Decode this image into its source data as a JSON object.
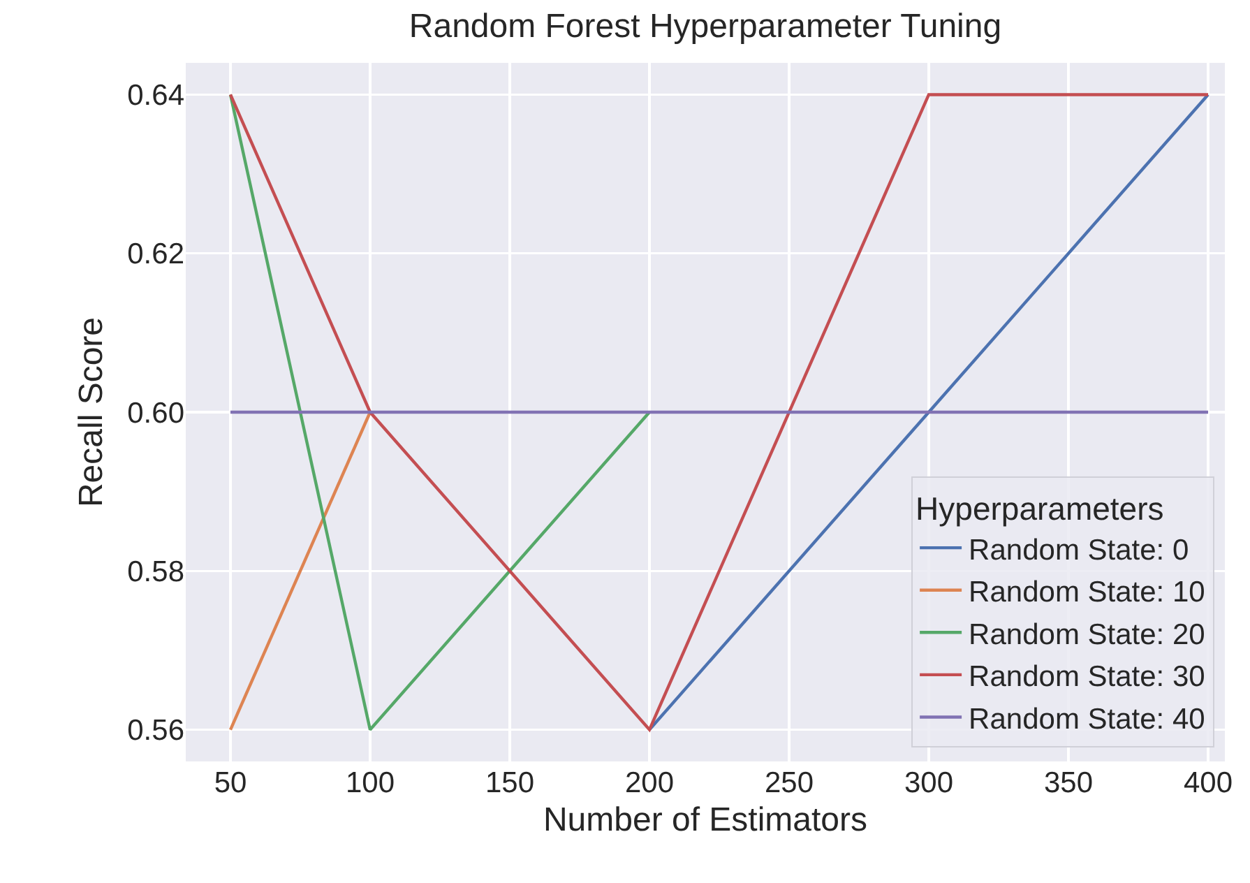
{
  "chart_data": {
    "type": "line",
    "title": "Random Forest Hyperparameter Tuning",
    "xlabel": "Number of Estimators",
    "ylabel": "Recall Score",
    "legend_title": "Hyperparameters",
    "x": [
      50,
      100,
      200,
      300,
      400
    ],
    "series": [
      {
        "name": "Random State: 0",
        "color": "#4c72b0",
        "values": [
          null,
          null,
          0.56,
          0.6,
          0.64
        ]
      },
      {
        "name": "Random State: 10",
        "color": "#dd8452",
        "values": [
          0.56,
          0.6,
          null,
          null,
          null
        ]
      },
      {
        "name": "Random State: 20",
        "color": "#55a868",
        "values": [
          0.64,
          0.56,
          0.6,
          null,
          null
        ]
      },
      {
        "name": "Random State: 30",
        "color": "#c44e52",
        "values": [
          0.64,
          0.6,
          0.56,
          0.64,
          0.64
        ]
      },
      {
        "name": "Random State: 40",
        "color": "#8172b3",
        "values": [
          0.6,
          0.6,
          0.6,
          0.6,
          0.6
        ]
      }
    ],
    "xlim": [
      34,
      406
    ],
    "xticks": [
      50,
      100,
      150,
      200,
      250,
      300,
      350,
      400
    ],
    "ylim": [
      0.556,
      0.644
    ],
    "yticks": [
      {
        "value": 0.56,
        "label": "0.56"
      },
      {
        "value": 0.58,
        "label": "0.58"
      },
      {
        "value": 0.6,
        "label": "0.60"
      },
      {
        "value": 0.62,
        "label": "0.62"
      },
      {
        "value": 0.64,
        "label": "0.64"
      }
    ],
    "grid": true,
    "legend": "bottom right",
    "marker": "none",
    "line_style": "solid"
  }
}
